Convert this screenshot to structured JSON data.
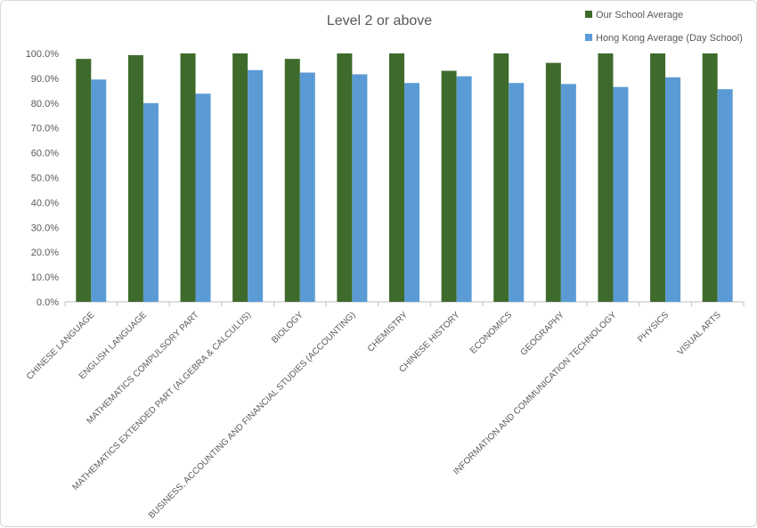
{
  "chart_data": {
    "type": "bar",
    "title": "Level 2 or above",
    "categories": [
      "CHINESE LANGUAGE",
      "ENGLISH LANGUAGE",
      "MATHEMATICS COMPULSORY PART",
      "MATHEMATICS EXTENDED PART (ALGEBRA & CALCULUS)",
      "BIOLOGY",
      "BUSINESS, ACCOUNTING AND FINANCIAL STUDIES (ACCOUNTING)",
      "CHEMISTRY",
      "CHINESE HISTORY",
      "ECONOMICS",
      "GEOGRAPHY",
      "INFORMATION AND COMMUNICATION TECHNOLOGY",
      "PHYSICS",
      "VISUAL ARTS"
    ],
    "series": [
      {
        "name": "Our School Average",
        "color": "#3e6b2c",
        "values": [
          97.8,
          99.3,
          100.0,
          100.0,
          97.8,
          100.0,
          100.0,
          93.0,
          100.0,
          96.2,
          100.0,
          100.0,
          100.0
        ]
      },
      {
        "name": "Hong Kong Average (Day School)",
        "color": "#5b9bd5",
        "values": [
          89.5,
          80.0,
          83.8,
          93.3,
          92.3,
          91.6,
          88.1,
          90.8,
          88.1,
          87.7,
          86.5,
          90.4,
          85.6
        ]
      }
    ],
    "ylim": [
      0,
      100
    ],
    "ytick_step": 10,
    "yticks": [
      "0.0%",
      "10.0%",
      "20.0%",
      "30.0%",
      "40.0%",
      "50.0%",
      "60.0%",
      "70.0%",
      "80.0%",
      "90.0%",
      "100.0%"
    ],
    "xlabel": "",
    "ylabel": "",
    "grid": false,
    "legend_position": "top-right"
  }
}
